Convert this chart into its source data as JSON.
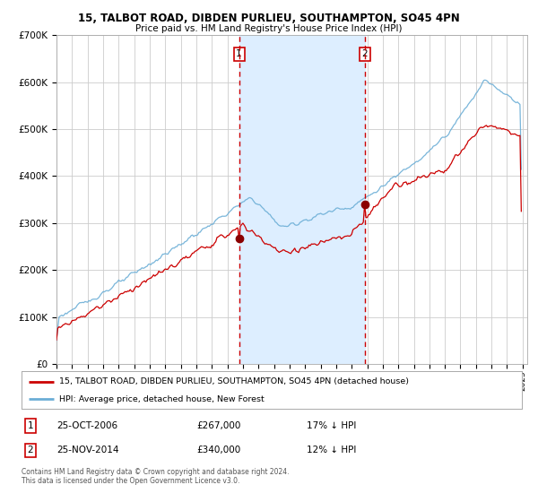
{
  "title_line1": "15, TALBOT ROAD, DIBDEN PURLIEU, SOUTHAMPTON, SO45 4PN",
  "title_line2": "Price paid vs. HM Land Registry's House Price Index (HPI)",
  "legend_line1": "15, TALBOT ROAD, DIBDEN PURLIEU, SOUTHAMPTON, SO45 4PN (detached house)",
  "legend_line2": "HPI: Average price, detached house, New Forest",
  "transaction1_date": "25-OCT-2006",
  "transaction1_price": 267000,
  "transaction1_label": "17% ↓ HPI",
  "transaction2_date": "25-NOV-2014",
  "transaction2_price": 340000,
  "transaction2_label": "12% ↓ HPI",
  "footnote": "Contains HM Land Registry data © Crown copyright and database right 2024.\nThis data is licensed under the Open Government Licence v3.0.",
  "hpi_color": "#6baed6",
  "price_color": "#cc0000",
  "dot_color": "#8b0000",
  "vline_color": "#cc0000",
  "shading_color": "#ddeeff",
  "background_color": "#ffffff",
  "grid_color": "#cccccc",
  "ylim": [
    0,
    700000
  ],
  "yticks": [
    0,
    100000,
    200000,
    300000,
    400000,
    500000,
    600000,
    700000
  ],
  "ytick_labels": [
    "£0",
    "£100K",
    "£200K",
    "£300K",
    "£400K",
    "£500K",
    "£600K",
    "£700K"
  ],
  "t1_year": 2006.79,
  "t2_year": 2014.9
}
